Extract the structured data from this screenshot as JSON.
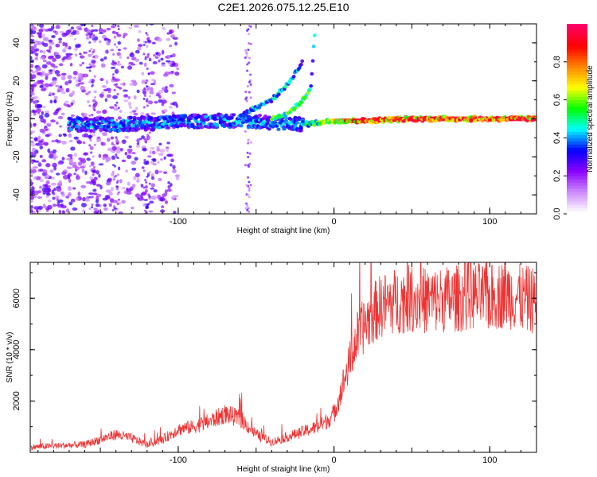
{
  "title": "C2E1.2026.075.12.25.E10",
  "chart_data": [
    {
      "type": "heatmap",
      "xlabel": "Height of straight line (km)",
      "ylabel": "Frequency (Hz)",
      "xlim": [
        -195,
        130
      ],
      "ylim": [
        -50,
        50
      ],
      "xticks": [
        -100,
        0,
        100
      ],
      "yticks": [
        -40,
        -20,
        0,
        20,
        40
      ],
      "colorbar": {
        "label": "Normalized spectral amplitude",
        "ticks": [
          "0.0",
          "0.2",
          "0.4",
          "0.6",
          "0.8"
        ],
        "range": [
          0,
          1
        ],
        "colors": [
          "#ffffff",
          "#cc88ff",
          "#8800ff",
          "#0000ff",
          "#00ffff",
          "#00ff00",
          "#ffff00",
          "#ff8800",
          "#ff0000",
          "#ff0066"
        ]
      },
      "ridges": [
        {
          "name": "",
          "x": [
            -170,
            -140,
            -110,
            -80,
            -60,
            -40,
            -20,
            -10,
            0,
            20,
            50,
            100,
            130
          ],
          "y": [
            -3,
            -3,
            -2,
            -1,
            -1,
            -2,
            -3,
            -2,
            -1,
            -1,
            0,
            0,
            0
          ]
        },
        {
          "name": "",
          "x": [
            -60,
            -50,
            -40,
            -30,
            -25,
            -20
          ],
          "y": [
            2,
            6,
            10,
            18,
            24,
            30
          ]
        },
        {
          "name": "",
          "x": [
            -40,
            -30,
            -25,
            -20,
            -15,
            -12
          ],
          "y": [
            0,
            3,
            6,
            10,
            16,
            48
          ]
        }
      ]
    },
    {
      "type": "line",
      "xlabel": "Height of straight line (km)",
      "ylabel": "SNR (10 * v/v)",
      "xlim": [
        -195,
        130
      ],
      "ylim": [
        0,
        7400
      ],
      "xticks": [
        -100,
        0,
        100
      ],
      "yticks": [
        2000,
        4000,
        6000
      ],
      "series": [
        {
          "name": "",
          "color": "#ee3333",
          "x": [
            -195,
            -180,
            -160,
            -150,
            -140,
            -130,
            -120,
            -110,
            -100,
            -90,
            -80,
            -70,
            -60,
            -50,
            -40,
            -30,
            -20,
            -10,
            -5,
            0,
            5,
            10,
            15,
            20,
            25,
            30,
            40,
            50,
            60,
            70,
            80,
            90,
            100,
            110,
            120,
            130
          ],
          "y": [
            200,
            250,
            300,
            500,
            700,
            550,
            300,
            500,
            900,
            1000,
            1200,
            1500,
            1300,
            700,
            400,
            600,
            800,
            1000,
            1200,
            1500,
            2500,
            3500,
            4500,
            5000,
            5400,
            5700,
            5900,
            6000,
            5900,
            5950,
            6000,
            6100,
            6000,
            6200,
            6000,
            5900
          ]
        }
      ]
    }
  ]
}
